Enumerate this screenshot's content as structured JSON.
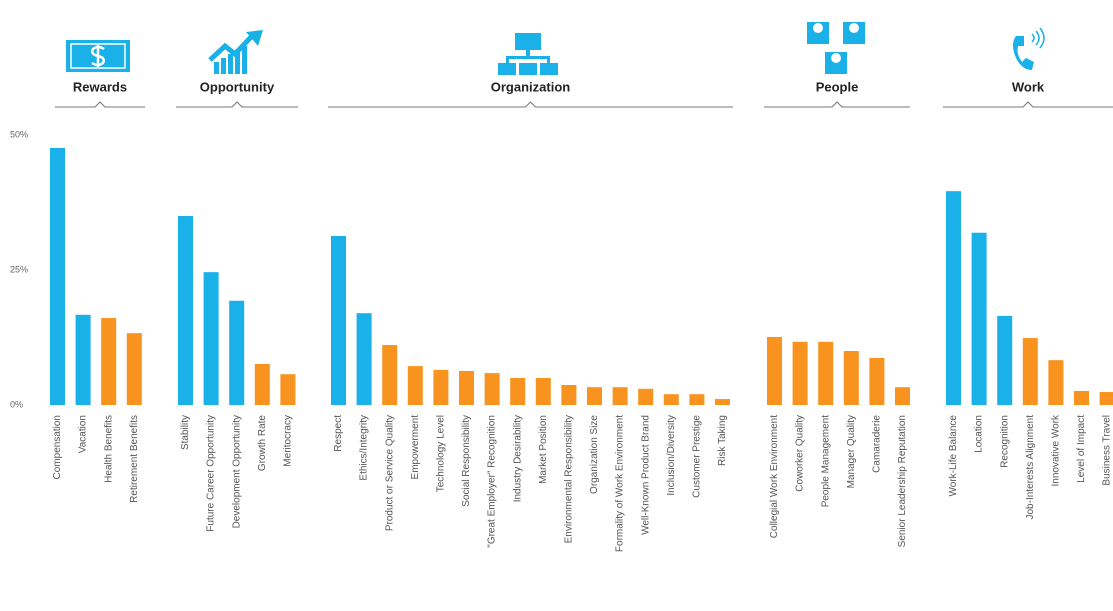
{
  "chart_data": {
    "type": "bar",
    "ylim": [
      0,
      50
    ],
    "yticks": [
      {
        "value": 0,
        "label": "0%"
      },
      {
        "value": 25,
        "label": "25%"
      },
      {
        "value": 50,
        "label": "50%"
      }
    ],
    "groups": [
      {
        "name": "Rewards",
        "categories": [
          "Compensation",
          "Vacation",
          "Health Benefits",
          "Retirement Benefits"
        ],
        "values": [
          47.6,
          16.7,
          16.1,
          13.3
        ],
        "colors": [
          "#1ab0e8",
          "#1ab0e8",
          "#f7931e",
          "#f7931e"
        ]
      },
      {
        "name": "Opportunity",
        "categories": [
          "Stability",
          "Future Career Opportunity",
          "Development Opportunity",
          "Growth Rate",
          "Meritocracy"
        ],
        "values": [
          35,
          24.6,
          19.3,
          7.6,
          5.7
        ],
        "colors": [
          "#1ab0e8",
          "#1ab0e8",
          "#1ab0e8",
          "#f7931e",
          "#f7931e"
        ]
      },
      {
        "name": "Organization",
        "categories": [
          "Respect",
          "Ethics/Integrity",
          "Product or Service Quality",
          "Empowerment",
          "Technology Level",
          "Social Responsibility",
          "\"Great Employer\" Recognition",
          "Industry Desirability",
          "Market Position",
          "Environmental Responsibility",
          "Organization Size",
          "Formality of Work Environment",
          "Well-Known Product Brand",
          "Inclusion/Diversity",
          "Customer Prestige",
          "Risk Taking"
        ],
        "values": [
          31.3,
          17,
          11.1,
          7.2,
          6.5,
          6.3,
          5.9,
          5,
          5,
          3.7,
          3.3,
          3.3,
          3,
          2,
          2,
          1.1
        ],
        "colors": [
          "#1ab0e8",
          "#1ab0e8",
          "#f7931e",
          "#f7931e",
          "#f7931e",
          "#f7931e",
          "#f7931e",
          "#f7931e",
          "#f7931e",
          "#f7931e",
          "#f7931e",
          "#f7931e",
          "#f7931e",
          "#f7931e",
          "#f7931e",
          "#f7931e"
        ]
      },
      {
        "name": "People",
        "categories": [
          "Collegial Work Environment",
          "Coworker Quality",
          "People Management",
          "Manager Quality",
          "Camaraderie",
          "Senior Leadership Reputation"
        ],
        "values": [
          12.6,
          11.7,
          11.7,
          10,
          8.7,
          3.3
        ],
        "colors": [
          "#f7931e",
          "#f7931e",
          "#f7931e",
          "#f7931e",
          "#f7931e",
          "#f7931e"
        ]
      },
      {
        "name": "Work",
        "categories": [
          "Work-Life Balance",
          "Location",
          "Recognition",
          "Job-Interests Alignment",
          "Innovative Work",
          "Level of Impact",
          "Business Travel"
        ],
        "values": [
          39.6,
          31.9,
          16.5,
          12.4,
          8.3,
          2.6,
          2.4
        ],
        "colors": [
          "#1ab0e8",
          "#1ab0e8",
          "#1ab0e8",
          "#f7931e",
          "#f7931e",
          "#f7931e",
          "#f7931e"
        ]
      }
    ]
  }
}
